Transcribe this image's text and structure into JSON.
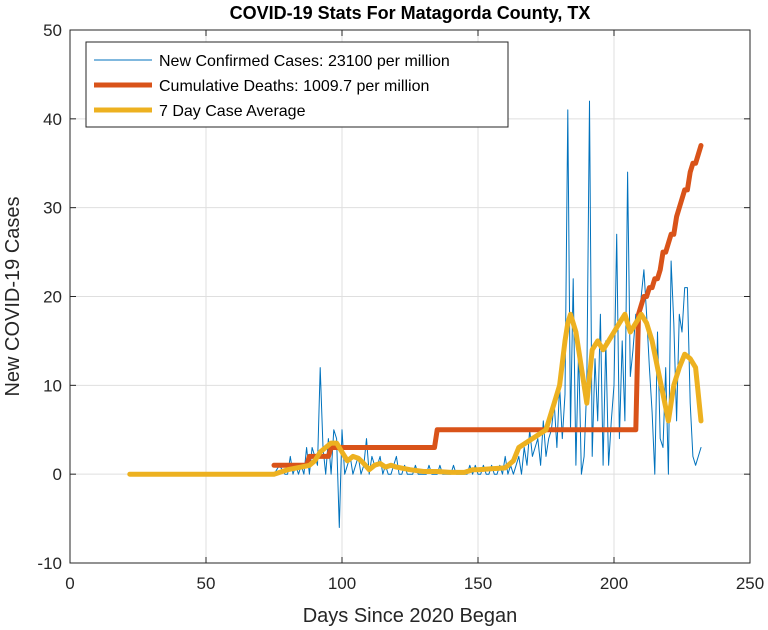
{
  "chart_data": {
    "type": "line",
    "title": "COVID-19 Stats For Matagorda County, TX",
    "xlabel": "Days Since 2020 Began",
    "ylabel": "New COVID-19 Cases",
    "xlim": [
      0,
      250
    ],
    "ylim": [
      -10,
      50
    ],
    "xticks": [
      0,
      50,
      100,
      150,
      200,
      250
    ],
    "yticks": [
      -10,
      0,
      10,
      20,
      30,
      40,
      50
    ],
    "grid": true,
    "legend_position": "top-left",
    "series": [
      {
        "name": "New Confirmed Cases: 23100 per million",
        "color": "#0072BD",
        "line_width": "thin",
        "x": [
          22,
          40,
          60,
          75,
          77,
          79,
          80,
          81,
          82,
          83,
          84,
          85,
          86,
          87,
          88,
          89,
          90,
          91,
          92,
          93,
          94,
          95,
          96,
          97,
          98,
          99,
          100,
          101,
          102,
          103,
          104,
          105,
          106,
          107,
          108,
          109,
          110,
          111,
          112,
          113,
          114,
          115,
          116,
          117,
          118,
          119,
          120,
          121,
          122,
          123,
          124,
          125,
          126,
          127,
          128,
          129,
          130,
          131,
          132,
          133,
          134,
          135,
          136,
          137,
          138,
          139,
          140,
          141,
          142,
          143,
          144,
          145,
          146,
          147,
          148,
          149,
          150,
          151,
          152,
          153,
          154,
          155,
          156,
          157,
          158,
          159,
          160,
          161,
          162,
          163,
          164,
          165,
          166,
          167,
          168,
          169,
          170,
          171,
          172,
          173,
          174,
          175,
          176,
          177,
          178,
          179,
          180,
          181,
          182,
          183,
          184,
          185,
          186,
          187,
          188,
          189,
          190,
          191,
          192,
          193,
          194,
          195,
          196,
          197,
          198,
          199,
          200,
          201,
          202,
          203,
          204,
          205,
          206,
          207,
          208,
          209,
          210,
          211,
          212,
          213,
          214,
          215,
          216,
          217,
          218,
          219,
          220,
          221,
          222,
          223,
          224,
          225,
          226,
          227,
          228,
          229,
          230,
          231,
          232
        ],
        "y": [
          0,
          0,
          0,
          0,
          1,
          0,
          0,
          2,
          0,
          1,
          0,
          1,
          0,
          3,
          0,
          3,
          2,
          1,
          12,
          3,
          0,
          4,
          0,
          5,
          4,
          -6,
          5,
          0,
          1,
          2,
          0,
          1,
          2,
          0,
          1,
          4,
          0,
          2,
          1,
          1,
          2,
          0,
          1,
          0,
          0,
          1,
          2,
          0,
          0,
          1,
          0,
          0,
          0,
          1,
          0,
          0,
          0,
          0,
          1,
          0,
          0,
          0,
          1,
          0,
          0,
          0,
          0,
          1,
          0,
          0,
          0,
          0,
          0,
          1,
          0,
          1,
          0,
          0,
          1,
          0,
          0,
          1,
          0,
          0,
          1,
          0,
          2,
          0,
          1,
          0,
          1,
          2,
          0,
          3,
          1,
          5,
          2,
          3,
          4,
          1,
          6,
          2,
          4,
          5,
          8,
          3,
          10,
          4,
          9,
          41,
          5,
          22,
          1,
          14,
          0,
          2,
          10,
          42,
          2,
          13,
          6,
          18,
          1,
          15,
          1,
          6,
          10,
          27,
          4,
          15,
          6,
          34,
          11,
          14,
          18,
          16,
          20,
          23,
          18,
          12,
          7,
          0,
          16,
          4,
          3,
          12,
          0,
          24,
          17,
          6,
          18,
          16,
          21,
          21,
          8,
          2,
          1,
          2,
          3
        ],
        "note": "approximate read-off"
      },
      {
        "name": "Cumulative Deaths: 1009.7 per million",
        "color": "#D95319",
        "line_width": "thick",
        "x": [
          75,
          76,
          87,
          88,
          95,
          96,
          134,
          135,
          208,
          209,
          210,
          211,
          212,
          213,
          214,
          215,
          216,
          217,
          218,
          219,
          220,
          221,
          222,
          223,
          224,
          225,
          226,
          227,
          228,
          229,
          230,
          231,
          232
        ],
        "y": [
          1,
          1,
          1,
          2,
          2,
          3,
          3,
          5,
          5,
          18,
          19,
          20,
          20,
          21,
          21,
          22,
          22,
          23,
          25,
          25,
          26,
          27,
          27,
          29,
          30,
          31,
          32,
          32,
          34,
          35,
          35,
          36,
          37
        ]
      },
      {
        "name": "7 Day Case Average",
        "color": "#EDB120",
        "line_width": "thick",
        "x": [
          22,
          40,
          60,
          75,
          80,
          85,
          88,
          90,
          92,
          94,
          96,
          98,
          100,
          102,
          104,
          106,
          108,
          110,
          112,
          114,
          116,
          118,
          120,
          125,
          130,
          135,
          140,
          145,
          148,
          150,
          155,
          160,
          163,
          165,
          170,
          175,
          178,
          180,
          182,
          183,
          184,
          185,
          186,
          188,
          190,
          192,
          194,
          196,
          198,
          200,
          202,
          204,
          206,
          208,
          210,
          212,
          214,
          216,
          218,
          220,
          222,
          224,
          226,
          228,
          230,
          231,
          232
        ],
        "y": [
          0,
          0,
          0,
          0,
          0.5,
          0.8,
          1,
          1.5,
          2.5,
          3,
          3.5,
          3.5,
          2.5,
          1.5,
          2,
          1.8,
          1.2,
          0.5,
          1,
          1.2,
          0.8,
          1,
          0.8,
          0.5,
          0.3,
          0.3,
          0.2,
          0.2,
          0.5,
          0.5,
          0.6,
          0.7,
          1.5,
          3,
          4,
          5,
          8,
          10,
          15,
          17,
          18,
          17,
          16,
          12,
          8,
          14,
          15,
          14,
          15,
          16,
          17,
          18,
          16,
          17,
          18,
          17,
          15,
          12,
          9,
          6,
          10,
          12,
          13.5,
          13,
          12,
          9,
          6
        ]
      }
    ]
  }
}
